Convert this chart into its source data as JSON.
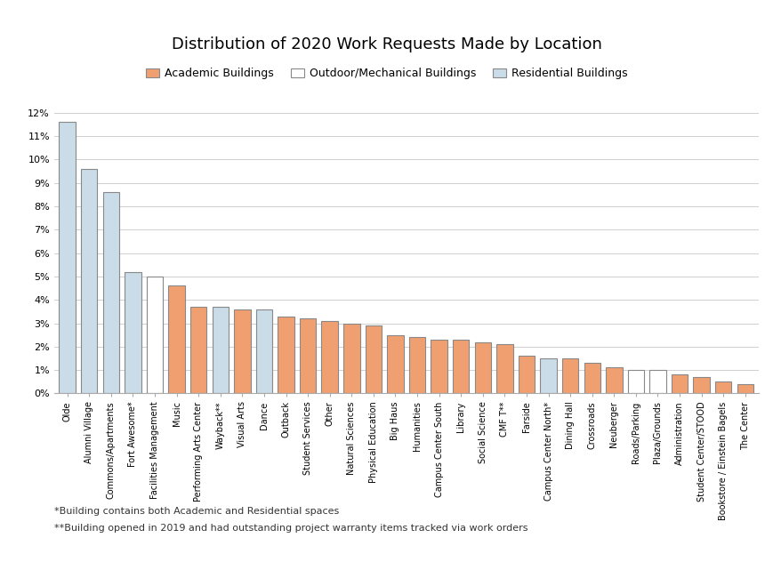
{
  "title": "Distribution of 2020 Work Requests Made by Location",
  "categories": [
    "Olde",
    "Alumni Village",
    "Commons/Apartments",
    "Fort Awesome*",
    "Facilities Management",
    "Music",
    "Performing Arts Center",
    "Wayback**",
    "Visual Arts",
    "Dance",
    "Outback",
    "Student Services",
    "Other",
    "Natural Sciences",
    "Physical Education",
    "Big Haus",
    "Humanities",
    "Campus Center South",
    "Library",
    "Social Science",
    "CMF T**",
    "Farside",
    "Campus Center North*",
    "Dining Hall",
    "Crossroads",
    "Neuberger",
    "Roads/Parking",
    "Plaza/Grounds",
    "Administration",
    "Student Center/STOOD",
    "Bookstore / Einstein Bagels",
    "The Center"
  ],
  "values": [
    0.116,
    0.096,
    0.086,
    0.052,
    0.05,
    0.046,
    0.037,
    0.037,
    0.036,
    0.036,
    0.033,
    0.032,
    0.031,
    0.03,
    0.029,
    0.025,
    0.024,
    0.023,
    0.023,
    0.022,
    0.021,
    0.016,
    0.015,
    0.015,
    0.013,
    0.011,
    0.01,
    0.01,
    0.008,
    0.007,
    0.005,
    0.004
  ],
  "colors": [
    "#c9dce8",
    "#c9dce8",
    "#c9dce8",
    "#c9dce8",
    "#ffffff",
    "#f0a070",
    "#f0a070",
    "#c9dce8",
    "#f0a070",
    "#c9dce8",
    "#f0a070",
    "#f0a070",
    "#f0a070",
    "#f0a070",
    "#f0a070",
    "#f0a070",
    "#f0a070",
    "#f0a070",
    "#f0a070",
    "#f0a070",
    "#f0a070",
    "#f0a070",
    "#c9dce8",
    "#f0a070",
    "#f0a070",
    "#f0a070",
    "#ffffff",
    "#ffffff",
    "#f0a070",
    "#f0a070",
    "#f0a070",
    "#f0a070"
  ],
  "bar_type": [
    "res",
    "res",
    "res",
    "res",
    "out",
    "acad",
    "acad",
    "res",
    "acad",
    "res",
    "acad",
    "acad",
    "acad",
    "acad",
    "acad",
    "acad",
    "acad",
    "acad",
    "acad",
    "acad",
    "acad",
    "acad",
    "res",
    "acad",
    "acad",
    "acad",
    "out",
    "out",
    "acad",
    "acad",
    "acad",
    "acad"
  ],
  "ylim": [
    0,
    0.125
  ],
  "yticks": [
    0,
    0.01,
    0.02,
    0.03,
    0.04,
    0.05,
    0.06,
    0.07,
    0.08,
    0.09,
    0.1,
    0.11,
    0.12
  ],
  "yticklabels": [
    "0%",
    "1%",
    "2%",
    "3%",
    "4%",
    "5%",
    "6%",
    "7%",
    "8%",
    "9%",
    "10%",
    "11%",
    "12%"
  ],
  "legend_labels": [
    "Academic Buildings",
    "Outdoor/Mechanical Buildings",
    "Residential Buildings"
  ],
  "legend_colors": [
    "#f0a070",
    "#ffffff",
    "#c9dce8"
  ],
  "legend_edge_colors": [
    "#888888",
    "#888888",
    "#888888"
  ],
  "acad_color": "#f0a070",
  "acad_edge": "#888888",
  "out_color": "#ffffff",
  "out_edge": "#888888",
  "res_color": "#c9dce8",
  "res_edge": "#888888",
  "footnote1": "*Building contains both Academic and Residential spaces",
  "footnote2": "**Building opened in 2019 and had outstanding project warranty items tracked via work orders",
  "bg_color": "#ffffff",
  "grid_color": "#d0d0d0",
  "title_fontsize": 13,
  "tick_fontsize": 8,
  "legend_fontsize": 9
}
